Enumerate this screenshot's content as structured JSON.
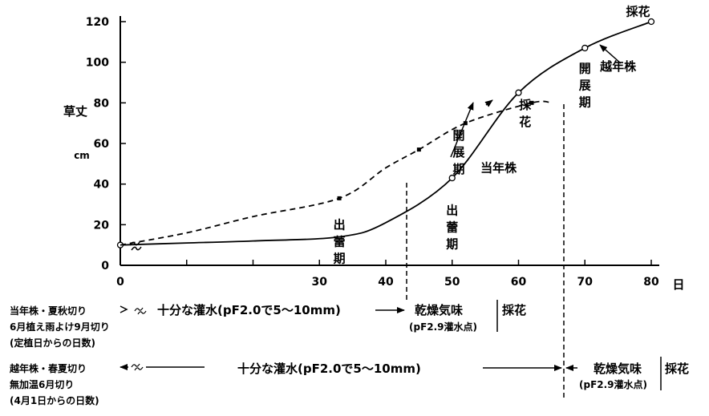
{
  "chart_data": {
    "type": "line",
    "title": "",
    "ylabel": "草丈",
    "yunit": "cm",
    "xunit": "日",
    "xlim": [
      0,
      80
    ],
    "ylim": [
      0,
      120
    ],
    "x_ticks": [
      0,
      10,
      20,
      30,
      40,
      50,
      60,
      70,
      80
    ],
    "x_tick_labels": [
      "0",
      "",
      "",
      "30",
      "40",
      "50",
      "60",
      "70",
      "80"
    ],
    "y_ticks": [
      0,
      20,
      40,
      60,
      80,
      100,
      120
    ],
    "series": [
      {
        "name": "越年株",
        "style": "solid",
        "marker": "open-circle",
        "x": [
          0,
          10,
          20,
          33,
          40,
          50,
          60,
          70,
          80
        ],
        "y": [
          10,
          11,
          12,
          14,
          21,
          43,
          85,
          107,
          120
        ]
      },
      {
        "name": "当年株",
        "style": "dashed",
        "marker": "filled-square",
        "x": [
          0,
          10,
          20,
          33,
          40,
          45,
          52,
          62,
          65
        ],
        "y": [
          10,
          16,
          24,
          33,
          48,
          57,
          70,
          80,
          80
        ]
      }
    ],
    "annotations": [
      {
        "text": "出蕾期",
        "x": 33,
        "y": 18
      },
      {
        "text": "出蕾期",
        "x": 50,
        "y": 25
      },
      {
        "text": "開展期",
        "x": 51,
        "y": 62
      },
      {
        "text": "採花",
        "x": 61,
        "y": 77
      },
      {
        "text": "当年株",
        "x": 57,
        "y": 46
      },
      {
        "text": "開展期",
        "x": 70,
        "y": 95
      },
      {
        "text": "採花",
        "x": 78,
        "y": 123
      },
      {
        "text": "越年株",
        "x": 75,
        "y": 96
      }
    ]
  },
  "schedule": {
    "row1": {
      "label_lines": [
        "当年株・夏秋切り",
        "6月植え雨よけ9月切り",
        "(定植日からの日数)"
      ],
      "irrigation": "十分な灌水(pF2.0で5～10mm)",
      "dry": "乾燥気味",
      "dry_note": "(pF2.9灌水点)",
      "harvest": "採花"
    },
    "row2": {
      "label_lines": [
        "越年株・春夏切り",
        "無加温6月切り",
        "(4月1日からの日数)"
      ],
      "irrigation": "十分な灌水(pF2.0で5～10mm)",
      "dry": "乾燥気味",
      "dry_note": "(pF2.9灌水点)",
      "harvest": "採花"
    }
  }
}
